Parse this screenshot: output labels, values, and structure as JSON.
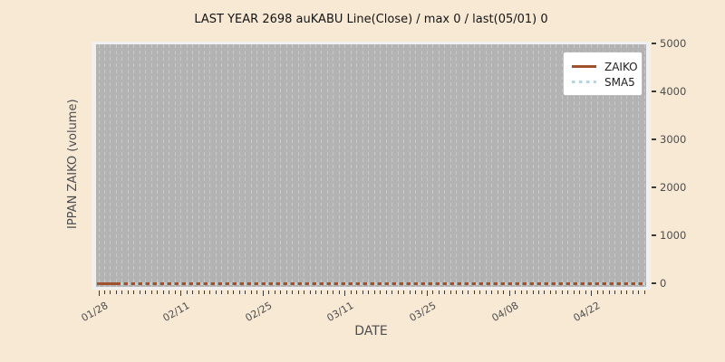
{
  "figure": {
    "title": "LAST YEAR 2698 auKABU Line(Close) / max 0 / last(05/01) 0",
    "xlabel": "DATE",
    "ylabel": "IPPAN ZAIKO (volume)"
  },
  "colors": {
    "background": "#f8e9d5",
    "axes_frame": "#f0f0f0",
    "panel": "#b3b3b3",
    "gridline": "#c9c9c9",
    "tick_mark": "#3b3b3b",
    "tick_text": "#4d4d4d",
    "axis_label_text": "#4d4d4d",
    "title_text": "#141414",
    "zaiko_line": "#a0522d",
    "sma5_line": "#add8e6",
    "legend_bg": "#ffffff",
    "legend_border": "#c0c0c0",
    "legend_text": "#222222"
  },
  "legend": {
    "items": [
      {
        "label": "ZAIKO",
        "style": "solid"
      },
      {
        "label": "SMA5",
        "style": "dotted"
      }
    ]
  },
  "chart_data": {
    "type": "line",
    "title": "LAST YEAR 2698 auKABU Line(Close) / max 0 / last(05/01) 0",
    "xlabel": "DATE",
    "ylabel": "IPPAN ZAIKO (volume)",
    "x_range": [
      "01/28",
      "05/01"
    ],
    "num_days": 94,
    "x_major_ticks": [
      "01/28",
      "02/11",
      "02/25",
      "03/11",
      "03/25",
      "04/08",
      "04/22"
    ],
    "x_major_day_index": [
      0,
      14,
      28,
      42,
      56,
      70,
      84
    ],
    "y_ticks": [
      0,
      1000,
      2000,
      3000,
      4000,
      5000
    ],
    "ylim": [
      0,
      5000
    ],
    "y_axis_side": "right",
    "grid": "vertical-daily-dashed",
    "legend_position": "upper-right",
    "max_value": 0,
    "last_point": {
      "date": "05/01",
      "value": 0
    },
    "series": [
      {
        "name": "ZAIKO",
        "style": "solid",
        "color": "#a0522d",
        "constant_value": 0,
        "start_day_index": 0
      },
      {
        "name": "SMA5",
        "style": "dotted",
        "color": "#add8e6",
        "constant_value": 0,
        "start_day_index": 4
      }
    ]
  }
}
